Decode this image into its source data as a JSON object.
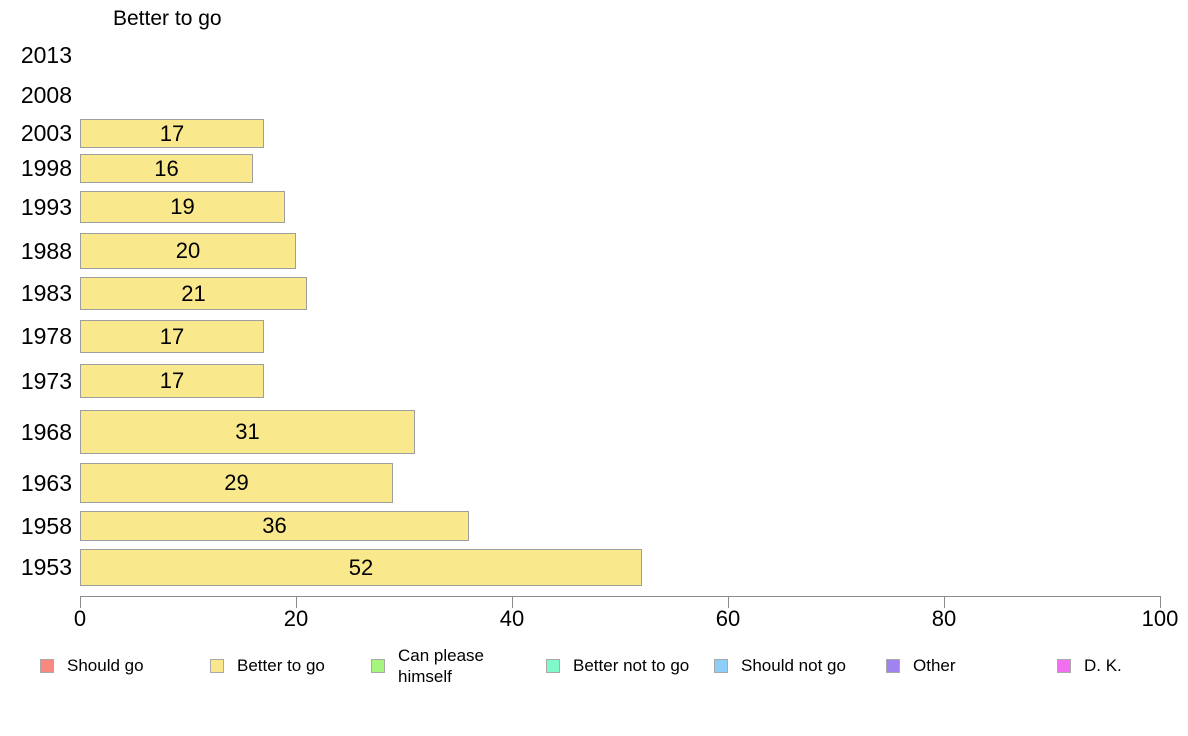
{
  "chart_data": {
    "type": "bar",
    "orientation": "horizontal",
    "title": "Better to go",
    "series_name": "Better to go",
    "categories": [
      "2013",
      "2008",
      "2003",
      "1998",
      "1993",
      "1988",
      "1983",
      "1978",
      "1973",
      "1968",
      "1963",
      "1958",
      "1953"
    ],
    "values": [
      null,
      null,
      17,
      16,
      19,
      20,
      21,
      17,
      17,
      31,
      29,
      36,
      52
    ],
    "xlabel": "",
    "ylabel": "",
    "xlim": [
      0,
      100
    ],
    "x_ticks": [
      0,
      20,
      40,
      60,
      80,
      100
    ],
    "grid": false,
    "value_labels": "inside-center",
    "bar_color": "#FAE98C",
    "bar_border_color": "#9E9E9E",
    "axis_color": "#8C8C8C",
    "legend_position": "bottom",
    "legend": [
      {
        "label": "Should go",
        "color": "#F9897F"
      },
      {
        "label": "Better to go",
        "color": "#F8E88B"
      },
      {
        "label": "Can please himself",
        "color": "#A6F57E"
      },
      {
        "label": "Better not to go",
        "color": "#7FF9C9"
      },
      {
        "label": "Should not go",
        "color": "#8DCEF9"
      },
      {
        "label": "Other",
        "color": "#A183F0"
      },
      {
        "label": "D. K.",
        "color": "#F16FF0"
      }
    ]
  }
}
